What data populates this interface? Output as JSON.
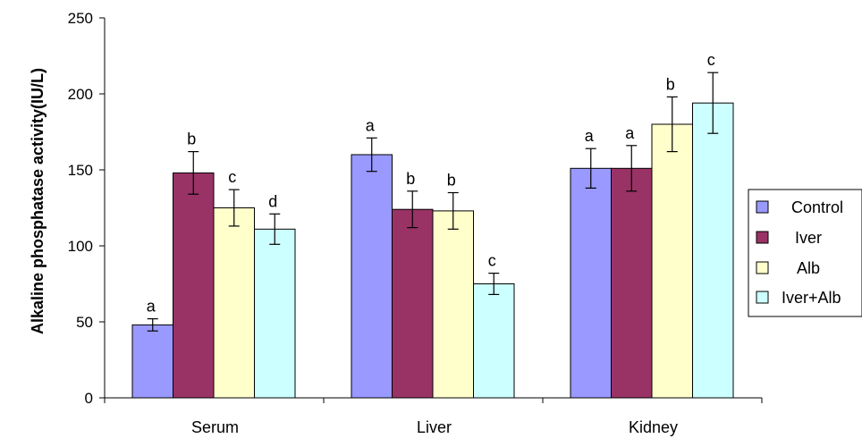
{
  "chart_data": {
    "type": "bar",
    "title": "",
    "xlabel": "",
    "ylabel": "Alkaline phosphatase activity(IU/L)",
    "ylim": [
      0,
      250
    ],
    "yticks": [
      0,
      50,
      100,
      150,
      200,
      250
    ],
    "grid": false,
    "legend_position": "right",
    "categories": [
      "Serum",
      "Liver",
      "Kidney"
    ],
    "series": [
      {
        "name": "Control",
        "color": "#9999ff",
        "values": [
          48,
          160,
          151
        ],
        "errors": [
          4,
          11,
          13
        ],
        "labels": [
          "a",
          "a",
          "a"
        ]
      },
      {
        "name": "Iver",
        "color": "#993366",
        "values": [
          148,
          124,
          151
        ],
        "errors": [
          14,
          12,
          15
        ],
        "labels": [
          "b",
          "b",
          "a"
        ]
      },
      {
        "name": "Alb",
        "color": "#ffffcc",
        "values": [
          125,
          123,
          180
        ],
        "errors": [
          12,
          12,
          18
        ],
        "labels": [
          "c",
          "b",
          "b"
        ]
      },
      {
        "name": "Iver+Alb",
        "color": "#ccffff",
        "values": [
          111,
          75,
          194
        ],
        "errors": [
          10,
          7,
          20
        ],
        "labels": [
          "d",
          "c",
          "c"
        ]
      }
    ]
  }
}
